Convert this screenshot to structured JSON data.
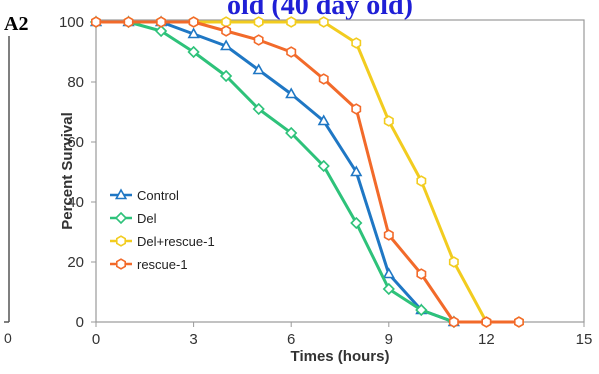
{
  "chart_data": {
    "type": "line",
    "panel_label": "A2",
    "title_fragment": "old (40 day old)",
    "left_fragment_tick": "0",
    "xlabel": "Times (hours)",
    "ylabel": "Percent Survival",
    "xlim": [
      0,
      15
    ],
    "ylim": [
      0,
      100
    ],
    "xticks": [
      "0",
      "3",
      "6",
      "9",
      "12",
      "15"
    ],
    "yticks": [
      "0",
      "20",
      "40",
      "60",
      "80",
      "100"
    ],
    "grid": false,
    "legend_position": "left-center",
    "series": [
      {
        "name": "Control",
        "color": "#1f77c4",
        "marker": "triangle",
        "x": [
          0,
          1,
          2,
          3,
          4,
          5,
          6,
          7,
          8,
          9,
          10,
          11
        ],
        "y": [
          100,
          100,
          100,
          96,
          92,
          84,
          76,
          67,
          50,
          16,
          4,
          0
        ]
      },
      {
        "name": "Del",
        "color": "#2ec27a",
        "marker": "diamond",
        "x": [
          0,
          1,
          2,
          3,
          4,
          5,
          6,
          7,
          8,
          9,
          10,
          11
        ],
        "y": [
          100,
          100,
          97,
          90,
          82,
          71,
          63,
          52,
          33,
          11,
          4,
          0
        ]
      },
      {
        "name": "Del+rescue-1",
        "color": "#f2cc1f",
        "marker": "hexagon",
        "x": [
          0,
          1,
          2,
          3,
          4,
          5,
          6,
          7,
          8,
          9,
          10,
          11,
          12,
          13
        ],
        "y": [
          100,
          100,
          100,
          100,
          100,
          100,
          100,
          100,
          93,
          67,
          47,
          20,
          0,
          0
        ]
      },
      {
        "name": "rescue-1",
        "color": "#f26a2a",
        "marker": "hexagon",
        "x": [
          0,
          1,
          2,
          3,
          4,
          5,
          6,
          7,
          8,
          9,
          10,
          11,
          12,
          13
        ],
        "y": [
          100,
          100,
          100,
          100,
          97,
          94,
          90,
          81,
          71,
          29,
          16,
          0,
          0,
          0
        ]
      }
    ]
  }
}
